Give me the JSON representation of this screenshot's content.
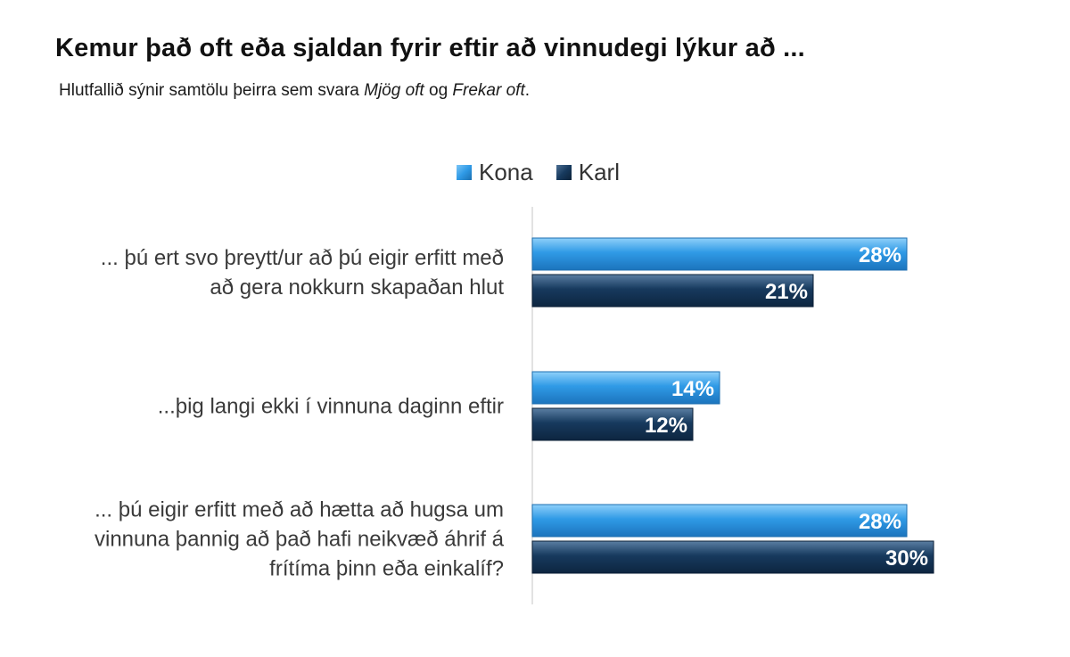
{
  "title": "Kemur það oft eða sjaldan fyrir eftir að vinnudegi lýkur að ...",
  "subtitle": {
    "prefix": "Hlutfallið sýnir samtölu þeirra sem svara ",
    "em1": "Mjög oft",
    "mid": " og ",
    "em2": "Frekar oft",
    "suffix": "."
  },
  "chart_data": {
    "type": "bar",
    "orientation": "horizontal",
    "categories": [
      [
        "... þú ert svo þreytt/ur að þú eigir erfitt með",
        "að gera nokkurn skapaðan hlut"
      ],
      [
        "...þig langi ekki í vinnuna daginn eftir"
      ],
      [
        "... þú eigir erfitt með að hætta að hugsa um",
        "vinnuna þannig að það hafi neikvæð áhrif á",
        "frítíma þinn eða einkalíf?"
      ]
    ],
    "series": [
      {
        "name": "Kona",
        "color": "#2f9ae6",
        "values": [
          28,
          14,
          28
        ],
        "labels": [
          "28%",
          "14%",
          "28%"
        ]
      },
      {
        "name": "Karl",
        "color": "#173a5e",
        "values": [
          21,
          12,
          30
        ],
        "labels": [
          "21%",
          "12%",
          "30%"
        ]
      }
    ],
    "legend": "top",
    "grid": false
  }
}
